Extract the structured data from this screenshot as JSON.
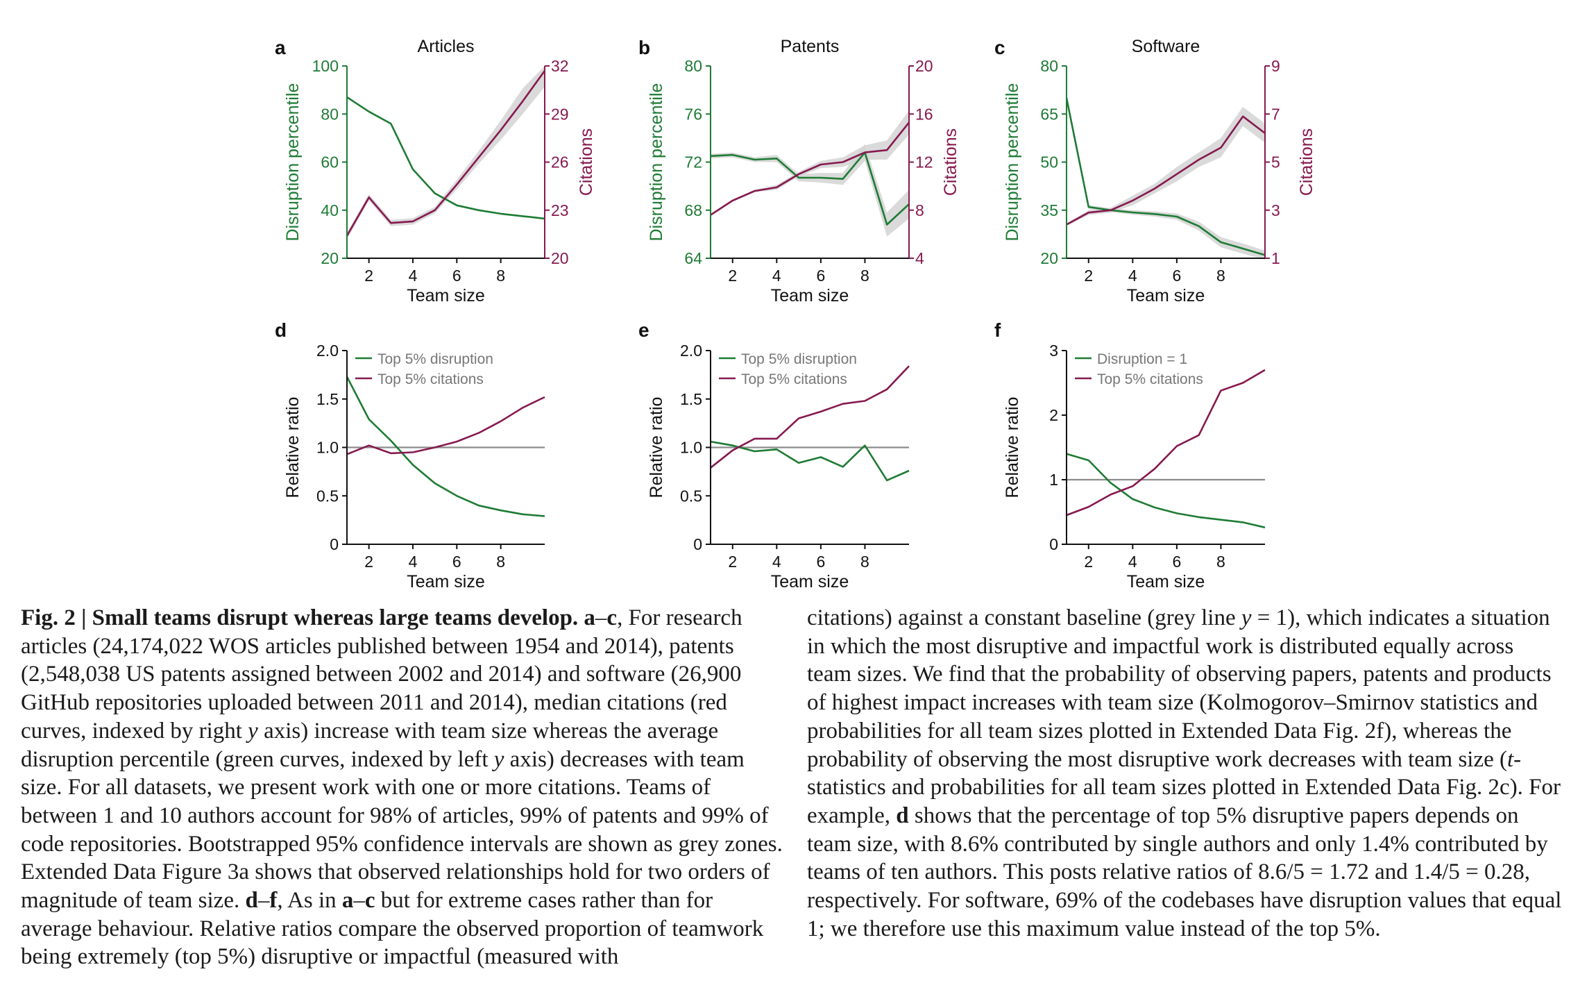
{
  "figure": {
    "colors": {
      "green": "#1e7b34",
      "maroon": "#86194f",
      "grey": "#8c8c8c",
      "band": "#d4d4d4"
    },
    "panels_top": [
      {
        "letter": "a",
        "title": "Articles",
        "xlabel": "Team size",
        "ylabel_left": "Disruption percentile",
        "ylabel_right": "Citations",
        "x_ticks": [
          "2",
          "4",
          "6",
          "8"
        ],
        "left_ticks": [
          "100",
          "80",
          "60",
          "40",
          "20"
        ],
        "right_ticks": [
          "32",
          "29",
          "26",
          "23",
          "20"
        ]
      },
      {
        "letter": "b",
        "title": "Patents",
        "xlabel": "Team size",
        "ylabel_left": "Disruption percentile",
        "ylabel_right": "Citations",
        "x_ticks": [
          "2",
          "4",
          "6",
          "8"
        ],
        "left_ticks": [
          "80",
          "76",
          "72",
          "68",
          "64"
        ],
        "right_ticks": [
          "20",
          "16",
          "12",
          "8",
          "4"
        ]
      },
      {
        "letter": "c",
        "title": "Software",
        "xlabel": "Team size",
        "ylabel_left": "Disruption percentile",
        "ylabel_right": "Citations",
        "x_ticks": [
          "2",
          "4",
          "6",
          "8"
        ],
        "left_ticks": [
          "80",
          "65",
          "50",
          "35",
          "20"
        ],
        "right_ticks": [
          "9",
          "7",
          "5",
          "3",
          "1"
        ]
      }
    ],
    "panels_bottom": [
      {
        "letter": "d",
        "xlabel": "Team size",
        "ylabel": "Relative ratio",
        "x_ticks": [
          "2",
          "4",
          "6",
          "8"
        ],
        "y_ticks": [
          "2.0",
          "1.5",
          "1.0",
          "0.5",
          "0"
        ],
        "legend": [
          "Top 5% disruption",
          "Top 5% citations"
        ]
      },
      {
        "letter": "e",
        "xlabel": "Team size",
        "ylabel": "Relative ratio",
        "x_ticks": [
          "2",
          "4",
          "6",
          "8"
        ],
        "y_ticks": [
          "2.0",
          "1.5",
          "1.0",
          "0.5",
          "0"
        ],
        "legend": [
          "Top 5% disruption",
          "Top 5% citations"
        ]
      },
      {
        "letter": "f",
        "xlabel": "Team size",
        "ylabel": "Relative ratio",
        "x_ticks": [
          "2",
          "4",
          "6",
          "8"
        ],
        "y_ticks": [
          "3",
          "2",
          "1",
          "0"
        ],
        "legend": [
          "Disruption = 1",
          "Top 5% citations"
        ]
      }
    ]
  },
  "chart_data": [
    {
      "type": "line",
      "panel": "a",
      "title": "Articles",
      "xlabel": "Team size",
      "ylabel": "Disruption percentile",
      "ylabel_right": "Citations",
      "xlim": [
        1,
        10
      ],
      "ylim": [
        20,
        100
      ],
      "ylim_right": [
        20,
        32
      ],
      "x": [
        1,
        2,
        3,
        4,
        5,
        6,
        7,
        8,
        9,
        10
      ],
      "series": [
        {
          "name": "Disruption percentile",
          "axis": "left",
          "color": "green",
          "values": [
            87,
            81,
            76,
            57,
            47,
            42,
            40,
            38.5,
            37.5,
            36.5
          ]
        },
        {
          "name": "Citations",
          "axis": "right",
          "color": "maroon",
          "values": [
            21.4,
            23.8,
            22.2,
            22.3,
            23.0,
            24.6,
            26.3,
            28.0,
            29.8,
            31.7
          ],
          "ci_low": [
            21.2,
            23.6,
            22.0,
            22.1,
            22.8,
            24.3,
            25.9,
            27.4,
            29.0,
            30.7
          ],
          "ci_high": [
            21.6,
            24.0,
            22.4,
            22.5,
            23.2,
            24.9,
            26.7,
            28.6,
            30.6,
            32.0
          ]
        }
      ]
    },
    {
      "type": "line",
      "panel": "b",
      "title": "Patents",
      "xlabel": "Team size",
      "ylabel": "Disruption percentile",
      "ylabel_right": "Citations",
      "xlim": [
        1,
        10
      ],
      "ylim": [
        64,
        80
      ],
      "ylim_right": [
        4,
        20
      ],
      "x": [
        1,
        2,
        3,
        4,
        5,
        6,
        7,
        8,
        9,
        10
      ],
      "series": [
        {
          "name": "Disruption percentile",
          "axis": "left",
          "color": "green",
          "values": [
            72.5,
            72.6,
            72.2,
            72.3,
            70.7,
            70.7,
            70.6,
            72.8,
            66.8,
            68.5
          ],
          "ci_low": [
            72.3,
            72.4,
            72.0,
            72.0,
            70.4,
            70.3,
            70.1,
            72.1,
            65.8,
            67.3
          ],
          "ci_high": [
            72.7,
            72.8,
            72.4,
            72.6,
            71.0,
            71.1,
            71.1,
            73.5,
            67.8,
            69.7
          ]
        },
        {
          "name": "Citations",
          "axis": "right",
          "color": "maroon",
          "values": [
            7.6,
            8.8,
            9.6,
            9.9,
            11.0,
            11.8,
            12.0,
            12.8,
            13.0,
            15.3
          ],
          "ci_low": [
            7.5,
            8.7,
            9.5,
            9.7,
            10.8,
            11.5,
            11.6,
            12.2,
            12.2,
            14.3
          ],
          "ci_high": [
            7.7,
            8.9,
            9.7,
            10.1,
            11.2,
            12.1,
            12.4,
            13.4,
            13.8,
            16.3
          ]
        }
      ]
    },
    {
      "type": "line",
      "panel": "c",
      "title": "Software",
      "xlabel": "Team size",
      "ylabel": "Disruption percentile",
      "ylabel_right": "Citations",
      "xlim": [
        1,
        10
      ],
      "ylim": [
        20,
        80
      ],
      "ylim_right": [
        1,
        9
      ],
      "x": [
        1,
        2,
        3,
        4,
        5,
        6,
        7,
        8,
        9,
        10
      ],
      "series": [
        {
          "name": "Disruption percentile",
          "axis": "left",
          "color": "green",
          "values": [
            70,
            36,
            35,
            34.3,
            33.8,
            33,
            30,
            25,
            23,
            21
          ],
          "ci_low": [
            69,
            35.4,
            34.4,
            33.6,
            33.0,
            32.0,
            28.6,
            23.4,
            21.4,
            19.6
          ],
          "ci_high": [
            71,
            36.6,
            35.6,
            35.0,
            34.6,
            34.0,
            31.4,
            26.6,
            24.6,
            22.4
          ]
        },
        {
          "name": "Citations",
          "axis": "right",
          "color": "maroon",
          "values": [
            2.4,
            2.9,
            3.0,
            3.4,
            3.9,
            4.5,
            5.1,
            5.6,
            6.9,
            6.2
          ],
          "ci_low": [
            2.35,
            2.8,
            2.9,
            3.2,
            3.7,
            4.2,
            4.8,
            5.2,
            6.5,
            5.8
          ],
          "ci_high": [
            2.45,
            3.0,
            3.1,
            3.6,
            4.1,
            4.8,
            5.4,
            6.0,
            7.3,
            6.6
          ]
        }
      ]
    },
    {
      "type": "line",
      "panel": "d",
      "xlabel": "Team size",
      "ylabel": "Relative ratio",
      "xlim": [
        1,
        10
      ],
      "ylim": [
        0,
        2.0
      ],
      "baseline": 1.0,
      "x": [
        1,
        2,
        3,
        4,
        5,
        6,
        7,
        8,
        9,
        10
      ],
      "series": [
        {
          "name": "Top 5% disruption",
          "color": "green",
          "values": [
            1.73,
            1.29,
            1.07,
            0.82,
            0.63,
            0.5,
            0.4,
            0.35,
            0.31,
            0.29
          ]
        },
        {
          "name": "Top 5% citations",
          "color": "maroon",
          "values": [
            0.93,
            1.02,
            0.94,
            0.95,
            1.0,
            1.06,
            1.15,
            1.27,
            1.41,
            1.52
          ]
        }
      ]
    },
    {
      "type": "line",
      "panel": "e",
      "xlabel": "Team size",
      "ylabel": "Relative ratio",
      "xlim": [
        1,
        10
      ],
      "ylim": [
        0,
        2.0
      ],
      "baseline": 1.0,
      "x": [
        1,
        2,
        3,
        4,
        5,
        6,
        7,
        8,
        9,
        10
      ],
      "series": [
        {
          "name": "Top 5% disruption",
          "color": "green",
          "values": [
            1.06,
            1.02,
            0.96,
            0.98,
            0.84,
            0.9,
            0.8,
            1.02,
            0.66,
            0.76
          ]
        },
        {
          "name": "Top 5% citations",
          "color": "maroon",
          "values": [
            0.79,
            0.97,
            1.09,
            1.09,
            1.3,
            1.37,
            1.45,
            1.48,
            1.6,
            1.84
          ]
        }
      ]
    },
    {
      "type": "line",
      "panel": "f",
      "xlabel": "Team size",
      "ylabel": "Relative ratio",
      "xlim": [
        1,
        10
      ],
      "ylim": [
        0,
        3
      ],
      "baseline": 1.0,
      "x": [
        1,
        2,
        3,
        4,
        5,
        6,
        7,
        8,
        9,
        10
      ],
      "series": [
        {
          "name": "Disruption = 1",
          "color": "green",
          "values": [
            1.4,
            1.3,
            0.95,
            0.7,
            0.57,
            0.48,
            0.42,
            0.38,
            0.34,
            0.26
          ]
        },
        {
          "name": "Top 5% citations",
          "color": "maroon",
          "values": [
            0.45,
            0.58,
            0.77,
            0.9,
            1.17,
            1.52,
            1.69,
            2.38,
            2.5,
            2.7
          ]
        }
      ]
    }
  ],
  "caption": {
    "left": [
      "Fig. 2 | Small teams disrupt whereas large teams develop. ",
      "a",
      "–",
      "c",
      ", For research articles (24,174,022 WOS articles published between 1954 and 2014), patents (2,548,038 US patents assigned between 2002 and 2014) and software (26,900 GitHub repositories uploaded between 2011 and 2014), median citations (red curves, indexed by right ",
      "y",
      " axis) increase with team size whereas the average disruption percentile (green curves, indexed by left ",
      "y",
      " axis) decreases with team size. For all datasets, we present work with one or more citations. Teams of between 1 and 10 authors account for 98% of articles, 99% of patents and 99% of code repositories. Bootstrapped 95% confidence intervals are shown as grey zones. Extended Data Figure 3a shows that observed relationships hold for two orders of magnitude of team size. ",
      "d",
      "–",
      "f",
      ", As in ",
      "a",
      "–",
      "c",
      " but for extreme cases rather than for average behaviour. Relative ratios compare the observed proportion of teamwork being extremely (top 5%) disruptive or impactful (measured with"
    ],
    "right": [
      "citations) against a constant baseline (grey line ",
      "y",
      " = 1), which indicates a situation in which the most disruptive and impactful work is distributed equally across team sizes. We find that the probability of observing papers, patents and products of highest impact increases with team size (Kolmogorov–Smirnov statistics and probabilities for all team sizes plotted in Extended Data ",
      "Fig. 2f",
      "), whereas the probability of observing the most disruptive work decreases with team size (",
      "t",
      "-statistics and probabilities for all team sizes plotted in Extended Data ",
      "Fig. 2c",
      "). For example, ",
      "d",
      " shows that the percentage of top 5% disruptive papers depends on team size, with 8.6% contributed by single authors and only 1.4% contributed by teams of ten authors. This posts relative ratios of 8.6/5 = 1.72 and 1.4/5 = 0.28, respectively. For software, 69% of the codebases have disruption values that equal 1; we therefore use this maximum value instead of the top 5%."
    ]
  }
}
